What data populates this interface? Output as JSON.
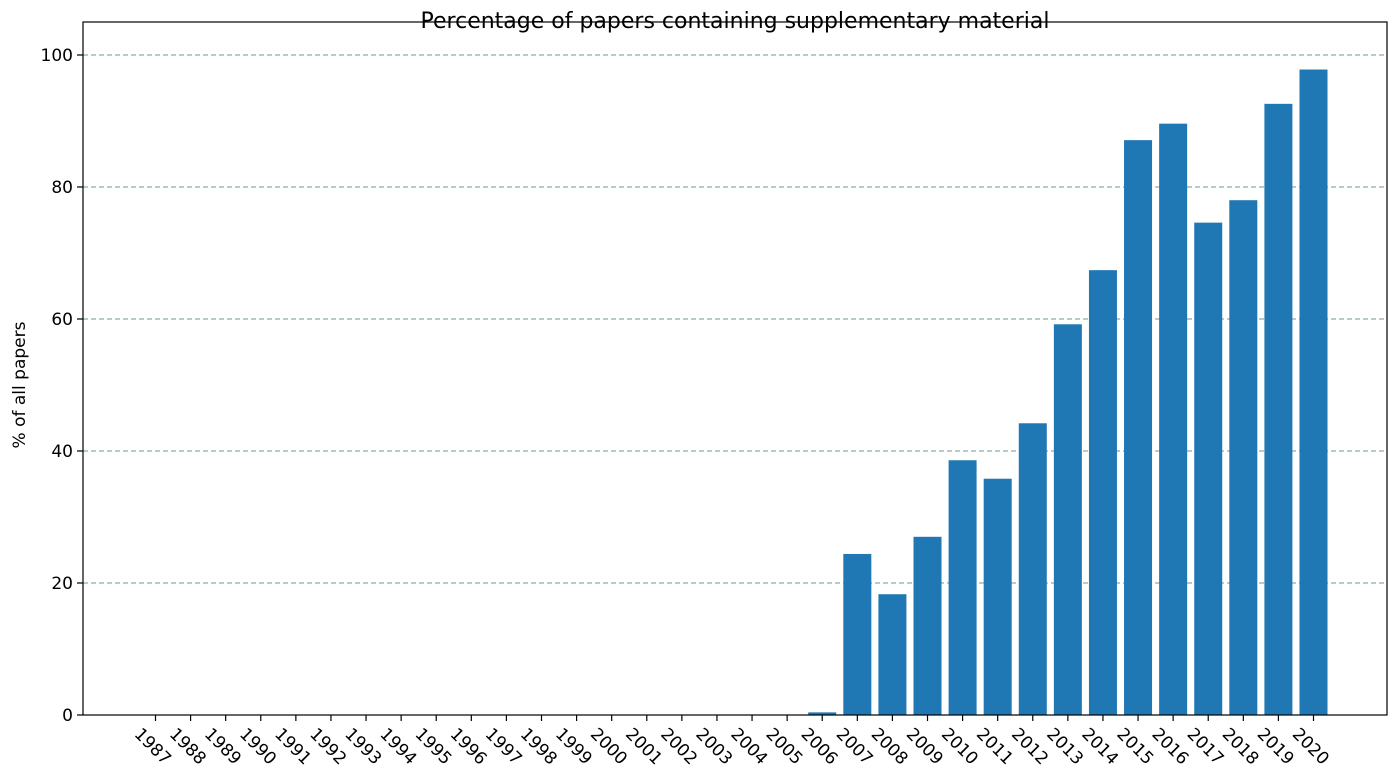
{
  "chart_data": {
    "type": "bar",
    "title": "Percentage of papers containing supplementary material",
    "xlabel": "",
    "ylabel": "% of all papers",
    "categories": [
      "1987",
      "1988",
      "1989",
      "1990",
      "1991",
      "1992",
      "1993",
      "1994",
      "1995",
      "1996",
      "1997",
      "1998",
      "1999",
      "2000",
      "2001",
      "2002",
      "2003",
      "2004",
      "2005",
      "2006",
      "2007",
      "2008",
      "2009",
      "2010",
      "2011",
      "2012",
      "2013",
      "2014",
      "2015",
      "2016",
      "2017",
      "2018",
      "2019",
      "2020"
    ],
    "values": [
      0,
      0,
      0,
      0,
      0,
      0,
      0,
      0,
      0,
      0,
      0,
      0,
      0,
      0,
      0,
      0,
      0,
      0,
      0,
      0.4,
      24.4,
      18.3,
      27.0,
      38.6,
      35.8,
      44.2,
      59.2,
      67.4,
      87.1,
      89.6,
      74.6,
      78.0,
      92.6,
      97.8
    ],
    "yticks": [
      "0",
      "20",
      "40",
      "60",
      "80",
      "100"
    ],
    "ylim": [
      0,
      100
    ],
    "grid": "horizontal dashed",
    "bar_color": "#1f77b4",
    "grid_color": "#6a9a9a"
  }
}
